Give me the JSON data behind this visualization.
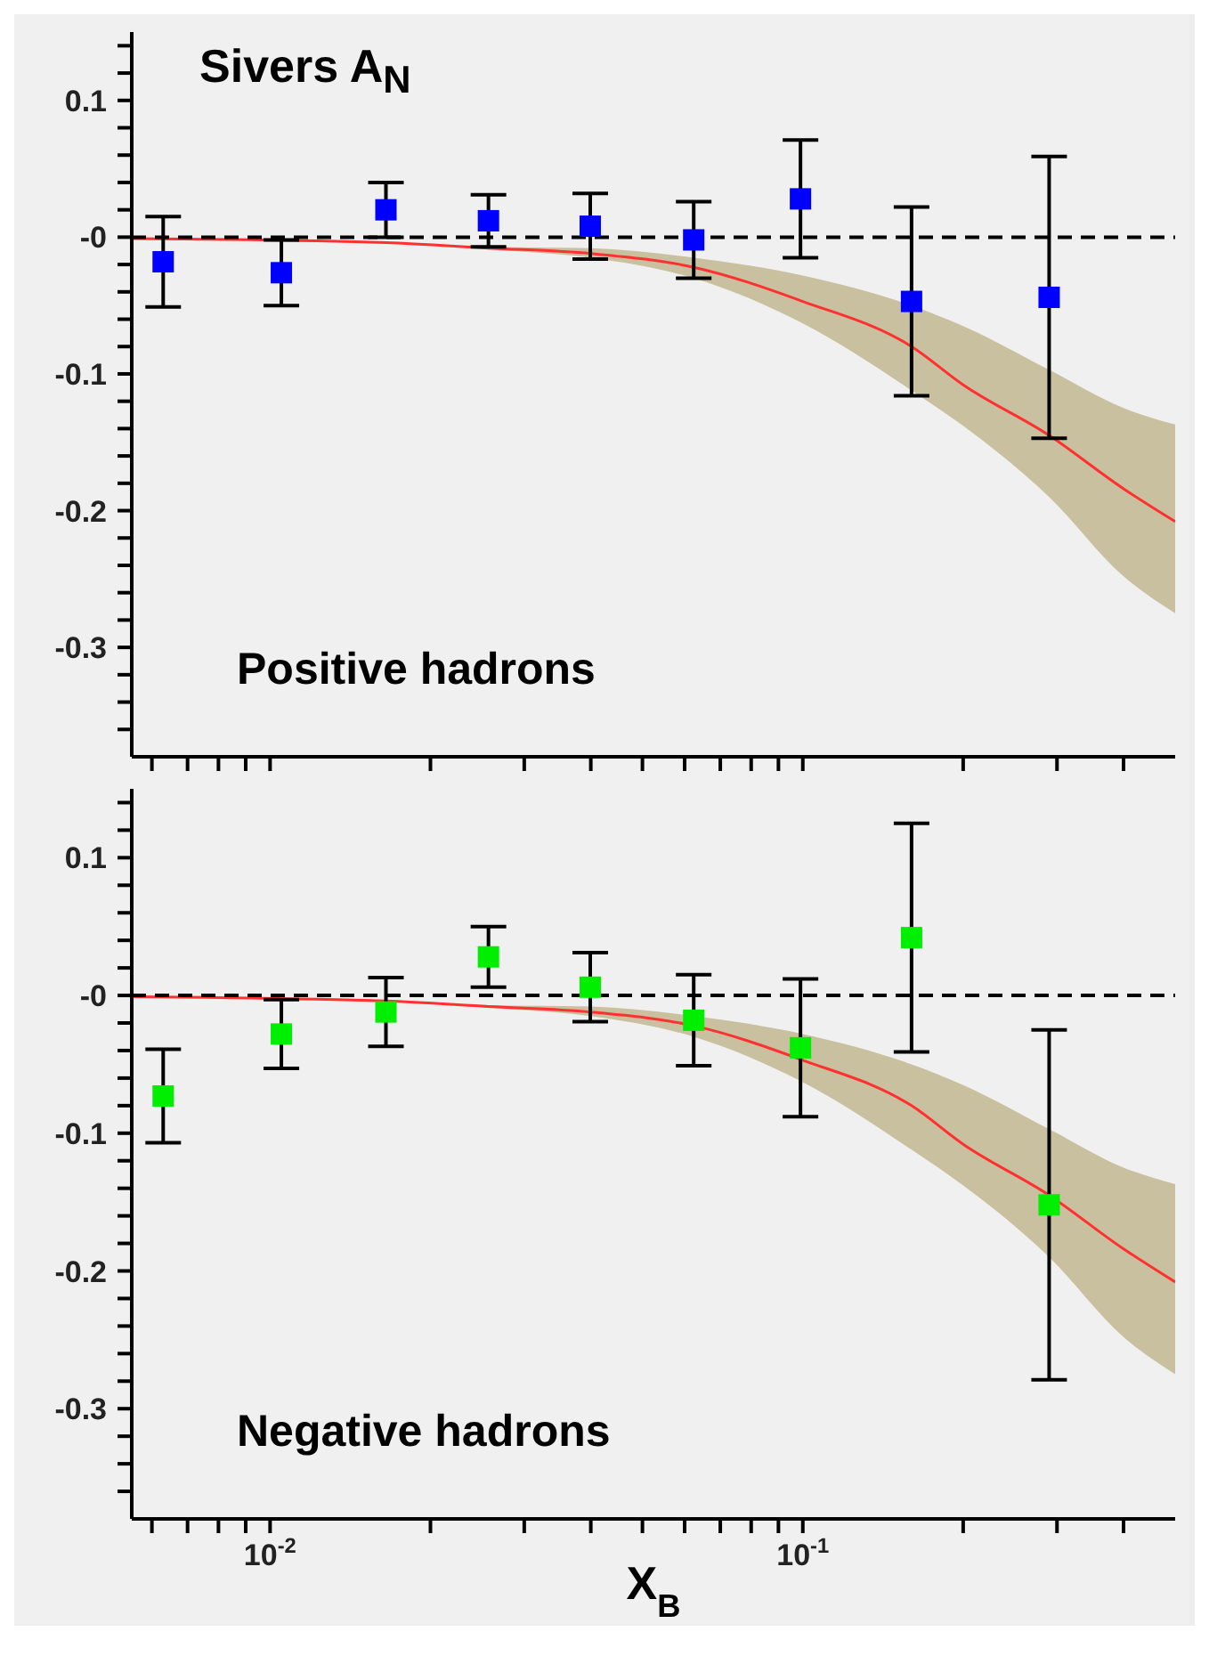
{
  "chart_data": [
    {
      "type": "scatter",
      "tick_labels": "y",
      "log": "x",
      "grid": false,
      "legend": false,
      "marker": "square",
      "annotations": [
        "Sivers A$_{N}$",
        "Positive hadrons"
      ],
      "x": [
        0.0063,
        0.0105,
        0.0165,
        0.0257,
        0.0399,
        0.0624,
        0.099,
        0.16,
        0.29
      ],
      "xlim": [
        0.0055,
        0.5
      ],
      "xticks": [
        {
          "value": 0.006,
          "label": null
        },
        {
          "value": 0.007,
          "label": null
        },
        {
          "value": 0.008,
          "label": null
        },
        {
          "value": 0.009,
          "label": null
        },
        {
          "value": 0.01,
          "label": null
        },
        {
          "value": 0.02,
          "label": null
        },
        {
          "value": 0.03,
          "label": null
        },
        {
          "value": 0.04,
          "label": null
        },
        {
          "value": 0.05,
          "label": null
        },
        {
          "value": 0.06,
          "label": null
        },
        {
          "value": 0.07,
          "label": null
        },
        {
          "value": 0.08,
          "label": null
        },
        {
          "value": 0.09,
          "label": null
        },
        {
          "value": 0.1,
          "label": null
        },
        {
          "value": 0.2,
          "label": null
        },
        {
          "value": 0.3,
          "label": null
        },
        {
          "value": 0.4,
          "label": null
        }
      ],
      "ylim": [
        -0.38,
        0.15
      ],
      "yticks": [
        {
          "value": -0.36,
          "label": null
        },
        {
          "value": -0.34,
          "label": null
        },
        {
          "value": -0.32,
          "label": null
        },
        -0.3,
        {
          "value": -0.28,
          "label": null
        },
        {
          "value": -0.26,
          "label": null
        },
        {
          "value": -0.24,
          "label": null
        },
        {
          "value": -0.22,
          "label": null
        },
        -0.2,
        {
          "value": -0.18,
          "label": null
        },
        {
          "value": -0.16,
          "label": null
        },
        {
          "value": -0.14,
          "label": null
        },
        {
          "value": -0.12,
          "label": null
        },
        -0.1,
        {
          "value": -0.08,
          "label": null
        },
        {
          "value": -0.06,
          "label": null
        },
        {
          "value": -0.04,
          "label": null
        },
        {
          "value": -0.02,
          "label": null
        },
        {
          "value": 0,
          "label": "-0"
        },
        {
          "value": 0.02,
          "label": null
        },
        {
          "value": 0.04,
          "label": null
        },
        {
          "value": 0.06,
          "label": null
        },
        {
          "value": 0.08,
          "label": null
        },
        0.1,
        {
          "value": 0.12,
          "label": null
        },
        {
          "value": 0.14,
          "label": null
        }
      ],
      "ref_lines": [
        {
          "axis": "y",
          "value": 0,
          "label": null,
          "line_style": "dashed",
          "color": "#000000"
        }
      ],
      "series": [
        {
          "type": "line",
          "marker": "none",
          "color": "#ff3030",
          "x": [
            0.0055,
            0.0165,
            0.0257,
            0.04,
            0.0624,
            0.1,
            0.16,
            0.2,
            0.29,
            0.4,
            0.5
          ],
          "values": [
            -0.001,
            -0.004,
            -0.008,
            -0.012,
            -0.022,
            -0.047,
            -0.08,
            -0.108,
            -0.145,
            -0.184,
            -0.208
          ],
          "lower": [
            -0.001,
            -0.004,
            -0.009,
            -0.015,
            -0.03,
            -0.063,
            -0.112,
            -0.138,
            -0.19,
            -0.248,
            -0.275
          ],
          "upper": [
            -0.001,
            -0.004,
            -0.007,
            -0.008,
            -0.015,
            -0.028,
            -0.05,
            -0.065,
            -0.097,
            -0.125,
            -0.137
          ]
        },
        {
          "color": "#0000ff",
          "values": [
            -0.018,
            -0.026,
            0.02,
            0.012,
            0.008,
            -0.002,
            0.028,
            -0.047,
            -0.044
          ],
          "errors": [
            0.033,
            0.024,
            0.02,
            0.019,
            0.024,
            0.028,
            0.043,
            0.069,
            0.103
          ]
        }
      ]
    },
    {
      "type": "scatter",
      "log": "x",
      "grid": false,
      "legend": false,
      "marker": "square",
      "xlabel": "X$_{B}$",
      "annotations": [
        "Negative hadrons"
      ],
      "x": [
        0.0063,
        0.0105,
        0.0165,
        0.0257,
        0.0399,
        0.0624,
        0.099,
        0.16,
        0.29
      ],
      "xlim": [
        0.0055,
        0.5
      ],
      "xticks": [
        {
          "value": 0.006,
          "label": null
        },
        {
          "value": 0.007,
          "label": null
        },
        {
          "value": 0.008,
          "label": null
        },
        {
          "value": 0.009,
          "label": null
        },
        {
          "value": 0.01,
          "label": "10$^{-2}$"
        },
        {
          "value": 0.02,
          "label": null
        },
        {
          "value": 0.03,
          "label": null
        },
        {
          "value": 0.04,
          "label": null
        },
        {
          "value": 0.05,
          "label": null
        },
        {
          "value": 0.06,
          "label": null
        },
        {
          "value": 0.07,
          "label": null
        },
        {
          "value": 0.08,
          "label": null
        },
        {
          "value": 0.09,
          "label": null
        },
        {
          "value": 0.1,
          "label": "10$^{-1}$"
        },
        {
          "value": 0.2,
          "label": null
        },
        {
          "value": 0.3,
          "label": null
        },
        {
          "value": 0.4,
          "label": null
        }
      ],
      "ylim": [
        -0.38,
        0.15
      ],
      "yticks": [
        {
          "value": -0.36,
          "label": null
        },
        {
          "value": -0.34,
          "label": null
        },
        {
          "value": -0.32,
          "label": null
        },
        -0.3,
        {
          "value": -0.28,
          "label": null
        },
        {
          "value": -0.26,
          "label": null
        },
        {
          "value": -0.24,
          "label": null
        },
        {
          "value": -0.22,
          "label": null
        },
        -0.2,
        {
          "value": -0.18,
          "label": null
        },
        {
          "value": -0.16,
          "label": null
        },
        {
          "value": -0.14,
          "label": null
        },
        {
          "value": -0.12,
          "label": null
        },
        -0.1,
        {
          "value": -0.08,
          "label": null
        },
        {
          "value": -0.06,
          "label": null
        },
        {
          "value": -0.04,
          "label": null
        },
        {
          "value": -0.02,
          "label": null
        },
        {
          "value": 0,
          "label": "-0"
        },
        {
          "value": 0.02,
          "label": null
        },
        {
          "value": 0.04,
          "label": null
        },
        {
          "value": 0.06,
          "label": null
        },
        {
          "value": 0.08,
          "label": null
        },
        0.1,
        {
          "value": 0.12,
          "label": null
        },
        {
          "value": 0.14,
          "label": null
        }
      ],
      "ref_lines": [
        {
          "axis": "y",
          "value": 0,
          "label": null,
          "line_style": "dashed",
          "color": "#000000"
        }
      ],
      "series": [
        {
          "type": "line",
          "marker": "none",
          "color": "#ff3030",
          "x": [
            0.0055,
            0.0165,
            0.0257,
            0.04,
            0.0624,
            0.1,
            0.16,
            0.2,
            0.29,
            0.4,
            0.5
          ],
          "values": [
            -0.001,
            -0.004,
            -0.008,
            -0.012,
            -0.022,
            -0.047,
            -0.08,
            -0.108,
            -0.145,
            -0.184,
            -0.208
          ],
          "lower": [
            -0.001,
            -0.004,
            -0.009,
            -0.015,
            -0.03,
            -0.063,
            -0.112,
            -0.138,
            -0.19,
            -0.248,
            -0.275
          ],
          "upper": [
            -0.001,
            -0.004,
            -0.007,
            -0.008,
            -0.015,
            -0.028,
            -0.05,
            -0.065,
            -0.097,
            -0.125,
            -0.137
          ]
        },
        {
          "color": "#00ee00",
          "values": [
            -0.073,
            -0.028,
            -0.012,
            0.028,
            0.006,
            -0.018,
            -0.038,
            0.042,
            -0.152
          ],
          "errors": [
            0.034,
            0.025,
            0.025,
            0.022,
            0.025,
            0.033,
            0.05,
            0.083,
            0.127
          ]
        }
      ]
    }
  ]
}
